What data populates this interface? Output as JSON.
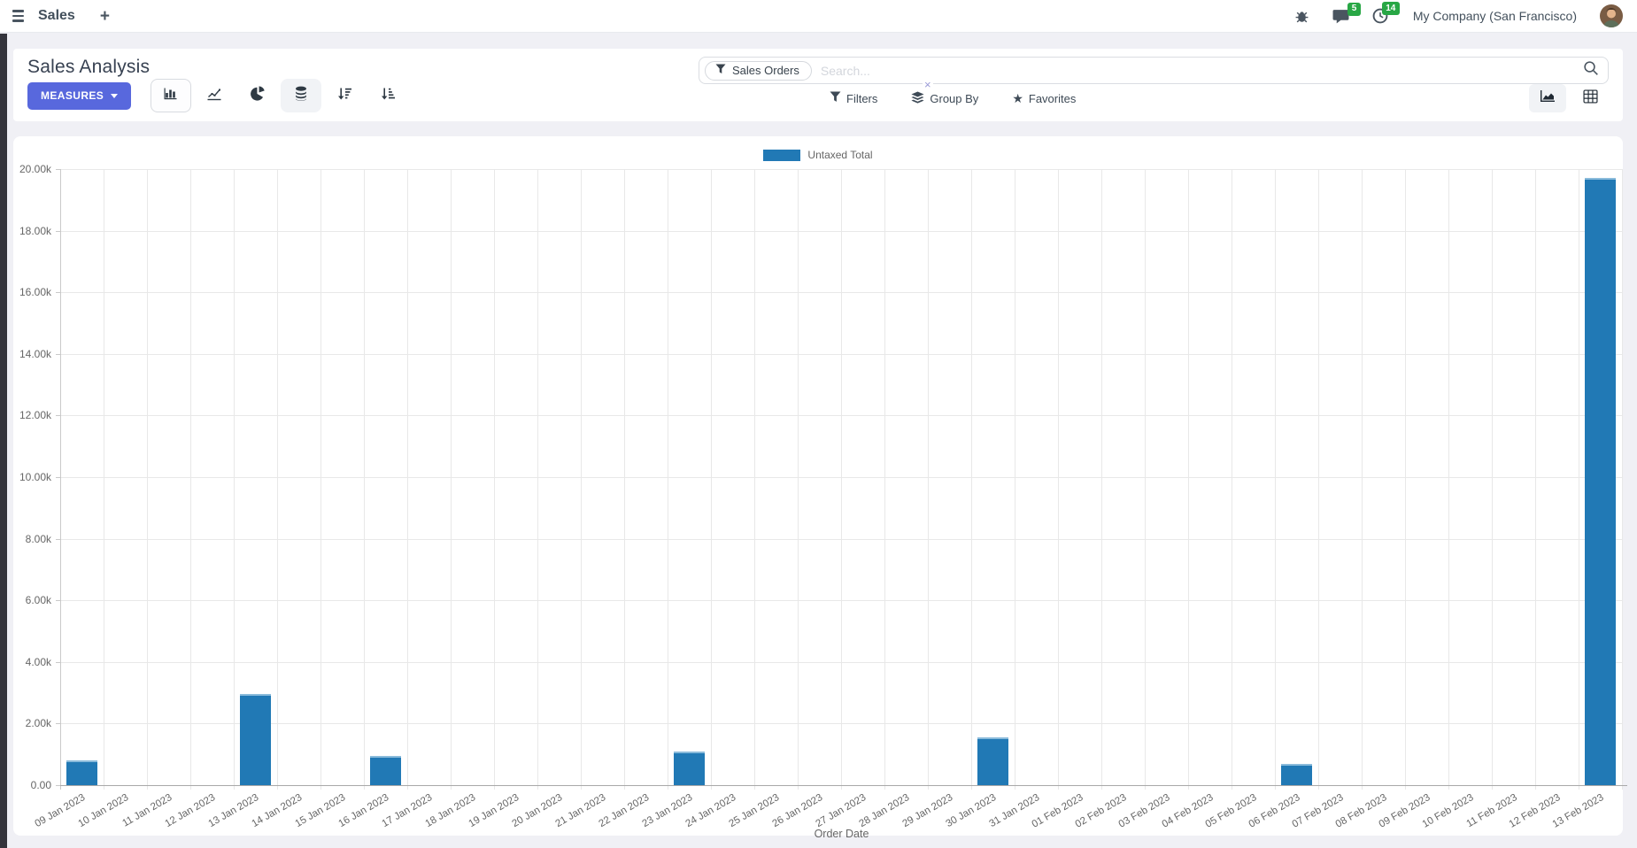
{
  "navbar": {
    "app_name": "Sales",
    "messages_badge": "5",
    "activities_badge": "14",
    "company": "My Company (San Francisco)"
  },
  "control_panel": {
    "title": "Sales Analysis",
    "measures_label": "MEASURES",
    "filters_label": "Filters",
    "group_by_label": "Group By",
    "favorites_label": "Favorites",
    "search": {
      "facet_label": "Sales Orders",
      "placeholder": "Search..."
    }
  },
  "icons": {
    "close_glyph": "×",
    "star_glyph": "★"
  },
  "chart_data": {
    "type": "bar",
    "title": "",
    "xlabel": "Order Date",
    "ylabel": "",
    "ylim": [
      0,
      20000
    ],
    "ytick_step": 2000,
    "ytick_labels": [
      "0.00",
      "2.00k",
      "4.00k",
      "6.00k",
      "8.00k",
      "10.00k",
      "12.00k",
      "14.00k",
      "16.00k",
      "18.00k",
      "20.00k"
    ],
    "grid": true,
    "legend_position": "top-center",
    "legend": [
      {
        "label": "Untaxed Total",
        "color": "#2179b5"
      }
    ],
    "categories": [
      "09 Jan 2023",
      "10 Jan 2023",
      "11 Jan 2023",
      "12 Jan 2023",
      "13 Jan 2023",
      "14 Jan 2023",
      "15 Jan 2023",
      "16 Jan 2023",
      "17 Jan 2023",
      "18 Jan 2023",
      "19 Jan 2023",
      "20 Jan 2023",
      "21 Jan 2023",
      "22 Jan 2023",
      "23 Jan 2023",
      "24 Jan 2023",
      "25 Jan 2023",
      "26 Jan 2023",
      "27 Jan 2023",
      "28 Jan 2023",
      "29 Jan 2023",
      "30 Jan 2023",
      "31 Jan 2023",
      "01 Feb 2023",
      "02 Feb 2023",
      "03 Feb 2023",
      "04 Feb 2023",
      "05 Feb 2023",
      "06 Feb 2023",
      "07 Feb 2023",
      "08 Feb 2023",
      "09 Feb 2023",
      "10 Feb 2023",
      "11 Feb 2023",
      "12 Feb 2023",
      "13 Feb 2023"
    ],
    "series": [
      {
        "name": "Untaxed Total",
        "color": "#2179b5",
        "values": [
          800,
          0,
          0,
          0,
          2950,
          0,
          0,
          950,
          0,
          0,
          0,
          0,
          0,
          0,
          1100,
          0,
          0,
          0,
          0,
          0,
          0,
          1550,
          0,
          0,
          0,
          0,
          0,
          0,
          700,
          0,
          0,
          0,
          0,
          0,
          0,
          19700
        ]
      }
    ]
  }
}
